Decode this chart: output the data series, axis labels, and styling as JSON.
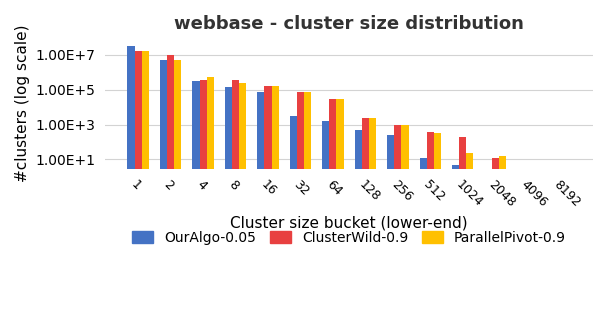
{
  "title": "webbase - cluster size distribution",
  "xlabel": "Cluster size bucket (lower-end)",
  "ylabel": "#clusters (log scale)",
  "categories": [
    1,
    2,
    4,
    8,
    16,
    32,
    64,
    128,
    256,
    512,
    1024,
    2048,
    4096,
    8192
  ],
  "series": {
    "OurAlgo-0.05": {
      "color": "#4472C4",
      "values": [
        30000000.0,
        5000000.0,
        300000.0,
        150000.0,
        70000.0,
        3000.0,
        1500.0,
        500.0,
        250.0,
        12.0,
        5.0,
        3.0,
        null,
        null
      ]
    },
    "ClusterWild-0.9": {
      "color": "#E84040",
      "values": [
        17000000.0,
        10000000.0,
        350000.0,
        350000.0,
        170000.0,
        70000.0,
        30000.0,
        2500.0,
        1000.0,
        400.0,
        200.0,
        12.0,
        null,
        null
      ]
    },
    "ParallelPivot-0.9": {
      "color": "#FFC000",
      "values": [
        17000000.0,
        5000000.0,
        500000.0,
        250000.0,
        160000.0,
        70000.0,
        30000.0,
        2500.0,
        1000.0,
        350.0,
        25.0,
        15.0,
        null,
        3.0
      ]
    }
  },
  "yticks": [
    10.0,
    1000.0,
    100000.0,
    10000000.0
  ],
  "ylim": [
    3,
    100000000.0
  ],
  "bar_width": 0.22,
  "figsize": [
    6.08,
    3.28
  ],
  "dpi": 100
}
